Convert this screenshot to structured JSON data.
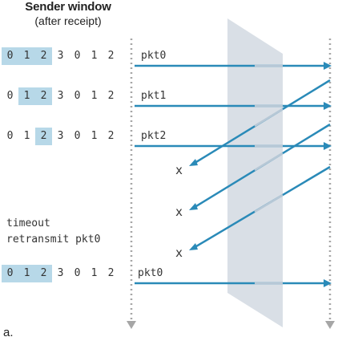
{
  "header": {
    "title": "Sender window",
    "subtitle": "(after receipt)"
  },
  "sender_rows": [
    {
      "seq": [
        "0",
        "1",
        "2",
        "3",
        "0",
        "1",
        "2"
      ],
      "window": [
        0,
        1,
        2
      ],
      "packet": "pkt0"
    },
    {
      "seq": [
        "0",
        "1",
        "2",
        "3",
        "0",
        "1",
        "2"
      ],
      "window": [
        1,
        2
      ],
      "packet": "pkt1"
    },
    {
      "seq": [
        "0",
        "1",
        "2",
        "3",
        "0",
        "1",
        "2"
      ],
      "window": [
        2
      ],
      "packet": "pkt2"
    },
    {
      "seq": [
        "0",
        "1",
        "2",
        "3",
        "0",
        "1",
        "2"
      ],
      "window": [
        0,
        1,
        2
      ],
      "packet": "pkt0"
    }
  ],
  "events": {
    "timeout": "timeout",
    "retransmit": "retransmit pkt0"
  },
  "lost_marker": "x",
  "panel_label": "a.",
  "colors": {
    "arrow": "#2a8ab8",
    "window_highlight": "#b7d8e8",
    "channel": "#d5dbe3",
    "timeline": "#a6a6a6"
  }
}
